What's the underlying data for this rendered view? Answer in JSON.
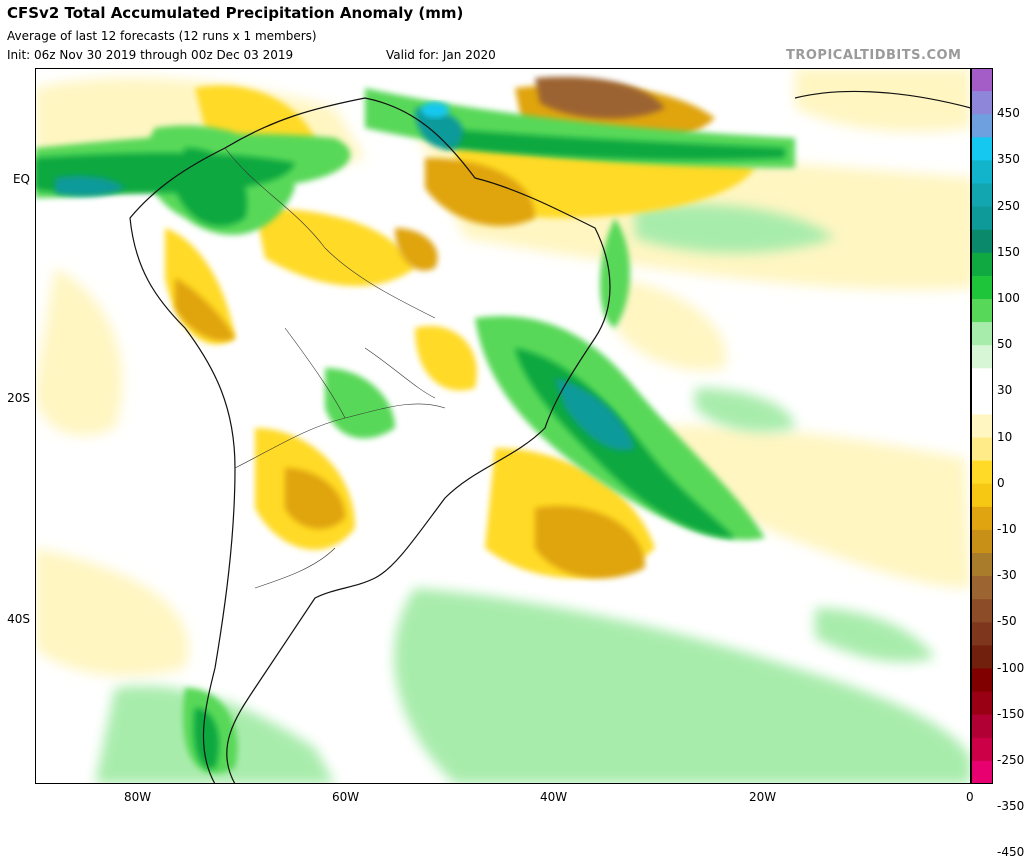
{
  "header": {
    "title": "CFSv2 Total Accumulated Precipitation Anomaly (mm)",
    "subtitle": "Average of last 12 forecasts (12 runs x 1 members)",
    "init": "Init: 06z Nov 30 2019 through 00z Dec 03 2019",
    "valid": "Valid for: Jan 2020",
    "brand": "TROPICALTIDBITS.COM"
  },
  "axes": {
    "y_labels": [
      "EQ",
      "20S",
      "40S"
    ],
    "x_labels": [
      "80W",
      "60W",
      "40W",
      "20W",
      "0"
    ]
  },
  "legend": {
    "labels": [
      "450",
      "350",
      "250",
      "150",
      "100",
      "50",
      "30",
      "10",
      "0",
      "-10",
      "-30",
      "-50",
      "-100",
      "-150",
      "-250",
      "-350",
      "-450"
    ],
    "colors": [
      "#a45cc7",
      "#8e86d8",
      "#6ea0e0",
      "#15c8f0",
      "#12b4cc",
      "#11a6b0",
      "#0f9a9a",
      "#0a8a6a",
      "#10a840",
      "#1ec43a",
      "#58d858",
      "#a8ecac",
      "#d6f6d6",
      "#ffffff",
      "#ffffff",
      "#fff6c2",
      "#ffec88",
      "#ffda26",
      "#f6c814",
      "#e0a410",
      "#c99018",
      "#a97c2c",
      "#9c6430",
      "#8c4c28",
      "#7e361c",
      "#72200e",
      "#800000",
      "#9a0014",
      "#b00034",
      "#cc0046",
      "#e80070"
    ]
  },
  "colors": {
    "ocean_background": "#ffffff",
    "dry": "#e0a410",
    "wet": "#10a840"
  }
}
